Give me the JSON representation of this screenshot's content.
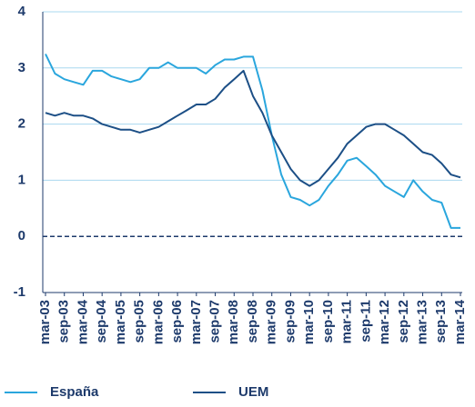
{
  "chart_data": {
    "type": "line",
    "categories": [
      "mar-03",
      null,
      "sep-03",
      null,
      "mar-04",
      null,
      "sep-04",
      null,
      "mar-05",
      null,
      "sep-05",
      null,
      "mar-06",
      null,
      "sep-06",
      null,
      "mar-07",
      null,
      "sep-07",
      null,
      "mar-08",
      null,
      "sep-08",
      null,
      "mar-09",
      null,
      "sep-09",
      null,
      "mar-10",
      null,
      "sep-10",
      null,
      "mar-11",
      null,
      "sep-11",
      null,
      "mar-12",
      null,
      "sep-12",
      null,
      "mar-13",
      null,
      "sep-13",
      null,
      "mar-14"
    ],
    "series": [
      {
        "name": "España",
        "color": "#2aa6dd",
        "values": [
          3.25,
          2.9,
          2.8,
          2.75,
          2.7,
          2.95,
          2.95,
          2.85,
          2.8,
          2.75,
          2.8,
          3.0,
          3.0,
          3.1,
          3.0,
          3.0,
          3.0,
          2.9,
          3.05,
          3.15,
          3.15,
          3.2,
          3.2,
          2.6,
          1.8,
          1.1,
          0.7,
          0.65,
          0.55,
          0.65,
          0.9,
          1.1,
          1.35,
          1.4,
          1.25,
          1.1,
          0.9,
          0.8,
          0.7,
          1.0,
          0.8,
          0.65,
          0.6,
          0.15,
          0.15
        ]
      },
      {
        "name": "UEM",
        "color": "#1c4f86",
        "values": [
          2.2,
          2.15,
          2.2,
          2.15,
          2.15,
          2.1,
          2.0,
          1.95,
          1.9,
          1.9,
          1.85,
          1.9,
          1.95,
          2.05,
          2.15,
          2.25,
          2.35,
          2.35,
          2.45,
          2.65,
          2.8,
          2.95,
          2.5,
          2.2,
          1.8,
          1.5,
          1.2,
          1.0,
          0.9,
          1.0,
          1.2,
          1.4,
          1.65,
          1.8,
          1.95,
          2.0,
          2.0,
          1.9,
          1.8,
          1.65,
          1.5,
          1.45,
          1.3,
          1.1,
          1.05
        ]
      }
    ],
    "ylim": [
      -1,
      4
    ],
    "yticks": [
      -1,
      0,
      1,
      2,
      3,
      4
    ],
    "grid": true
  }
}
